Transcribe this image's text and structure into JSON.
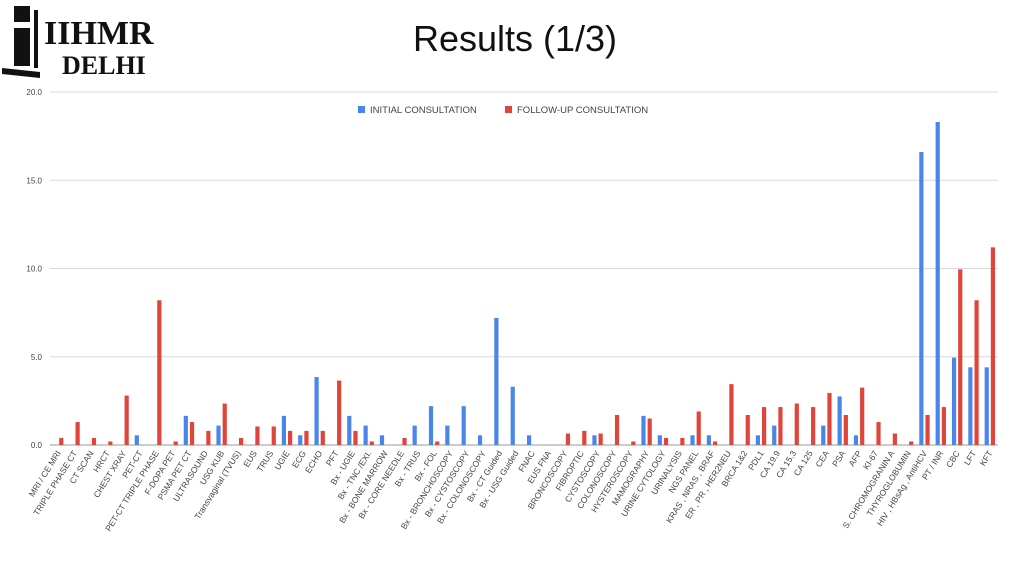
{
  "slide": {
    "title": "Results (1/3)",
    "logo_text_top": "IIHMR",
    "logo_text_bottom": "DELHI"
  },
  "chart_data": {
    "type": "bar",
    "title": "",
    "xlabel": "",
    "ylabel": "",
    "ylim": [
      0,
      20
    ],
    "yticks": [
      "0.0",
      "5.0",
      "10.0",
      "15.0",
      "20.0"
    ],
    "grid": true,
    "legend_position": "top-center",
    "categories": [
      "MRI / CE MRI",
      "TRIPLE PHASE CT",
      "CT SCAN",
      "HRCT",
      "CHEST XRAY",
      "PET-CT",
      "PET-CT TRIPLE PHASE",
      "F-DOPA PET",
      "PSMA PET CT",
      "ULTRASOUND",
      "USG KUB",
      "Transvaginal (TVUS)",
      "EUS",
      "TRUS",
      "UGIE",
      "ECG",
      "ECHO",
      "PFT",
      "Bx - UGIE",
      "Bx - TNC /EXI.",
      "Bx - BONE MARROW",
      "Bx - CORE NEEDLE",
      "Bx - TRUS",
      "Bx - FOL",
      "Bx - BRONCHOSCOPY",
      "Bx - CYSTOSCOPY",
      "Bx - COLONOSCOPY",
      "Bx - CT Guided",
      "Bx - USG Guided",
      "FNAC",
      "EUS FNA",
      "BRONCOSCOPY",
      "FIBROPTIC",
      "CYSTOSCOPY",
      "COLONOSCOPY",
      "HYSTEROSCOPY",
      "MAMOGRAPHY",
      "URINE CYTOLOGY",
      "URINALYSIS",
      "NGS PANEL",
      "KRAS , NRAS , BRAF",
      "ER , PR , HER2NEU",
      "BRCA 1&2",
      "PDL1",
      "CA 19.9",
      "CA 15.3",
      "CA 125",
      "CEA",
      "PSA",
      "AFP",
      "KI-67",
      "S. CHROMOGRANIN A",
      "THYROGLOBUMIN",
      "HIV , HBsAg , AntiHCV",
      "PT / INR",
      "CBC",
      "LFT",
      "KFT"
    ],
    "series": [
      {
        "name": "INITIAL CONSULTATION",
        "color": "#4a86e8",
        "values": [
          0,
          0,
          0,
          0,
          0,
          0.55,
          0,
          0,
          1.65,
          0,
          1.1,
          0,
          0,
          0,
          1.65,
          0.55,
          3.85,
          0,
          1.65,
          1.1,
          0.55,
          0,
          1.1,
          2.2,
          1.1,
          2.2,
          0.55,
          7.2,
          3.3,
          0.55,
          0,
          0,
          0,
          0.55,
          0,
          0,
          1.65,
          0.55,
          0,
          0.55,
          0.55,
          0,
          0,
          0.55,
          1.1,
          0,
          0,
          1.1,
          2.75,
          0.55,
          0,
          0,
          0,
          16.6,
          18.3,
          4.95,
          4.4,
          4.4
        ]
      },
      {
        "name": "FOLLOW-UP CONSULTATION",
        "color": "#e0453b",
        "values": [
          0.4,
          1.3,
          0.4,
          0.2,
          2.8,
          0,
          8.2,
          0.2,
          1.3,
          0.8,
          2.35,
          0.4,
          1.05,
          1.05,
          0.8,
          0.8,
          0.8,
          3.65,
          0.8,
          0.2,
          0,
          0.4,
          0,
          0.2,
          0,
          0,
          0,
          0,
          0,
          0,
          0,
          0.65,
          0.8,
          0.65,
          1.7,
          0.2,
          1.5,
          0.4,
          0.4,
          1.9,
          0.2,
          3.45,
          1.7,
          2.15,
          2.15,
          2.35,
          2.15,
          2.95,
          1.7,
          3.25,
          1.3,
          0.65,
          0.2,
          1.7,
          2.15,
          9.95,
          8.2,
          11.2
        ]
      }
    ]
  },
  "colors": {
    "grid": "#d9d9d9",
    "axis_text": "#444444",
    "title": "#111111"
  }
}
